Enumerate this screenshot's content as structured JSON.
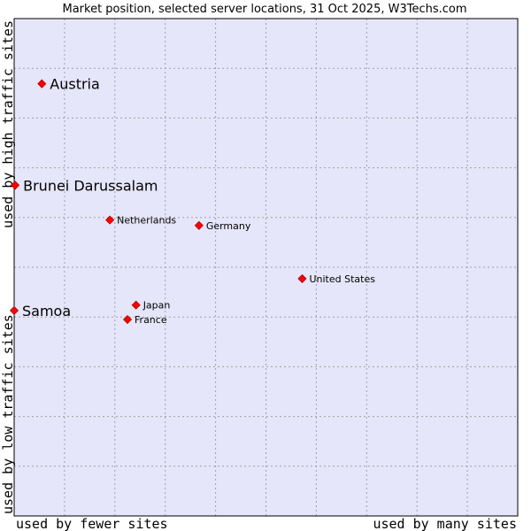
{
  "chart_data": {
    "type": "scatter",
    "title": "Market position, selected server locations, 31 Oct 2025, W3Techs.com",
    "xlabel_low": "used by fewer sites",
    "xlabel_high": "used by many sites",
    "ylabel_low": "used by low traffic sites",
    "ylabel_high": "used by high traffic sites",
    "xlim": [
      0,
      100
    ],
    "ylim": [
      0,
      100
    ],
    "grid": true,
    "colors": {
      "plot_bg": "#e6e6fa",
      "grid": "#a0a0a0",
      "point": "#ff0000",
      "point_stroke": "#b00000",
      "border": "#000000"
    },
    "points": [
      {
        "name": "Austria",
        "x": 5.5,
        "y": 86.9,
        "emphasis": true
      },
      {
        "name": "Brunei Darussalam",
        "x": 0.2,
        "y": 66.5,
        "emphasis": true
      },
      {
        "name": "Netherlands",
        "x": 19.0,
        "y": 59.5,
        "emphasis": false
      },
      {
        "name": "Germany",
        "x": 36.7,
        "y": 58.4,
        "emphasis": false
      },
      {
        "name": "United States",
        "x": 57.2,
        "y": 47.7,
        "emphasis": false
      },
      {
        "name": "Japan",
        "x": 24.2,
        "y": 42.4,
        "emphasis": false
      },
      {
        "name": "France",
        "x": 22.5,
        "y": 39.5,
        "emphasis": false
      },
      {
        "name": "Samoa",
        "x": 0.0,
        "y": 41.3,
        "emphasis": true
      }
    ]
  }
}
